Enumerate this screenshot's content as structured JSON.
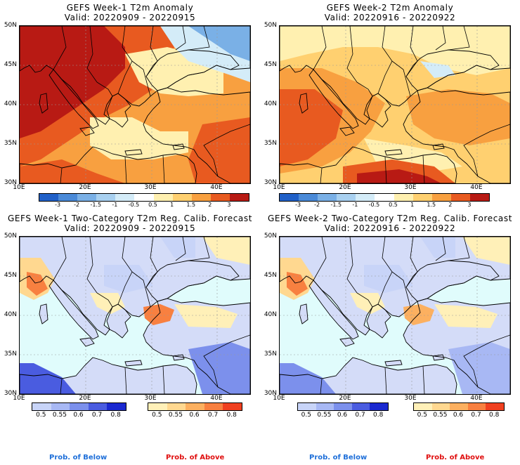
{
  "panels": [
    {
      "id": "p1",
      "title": "GEFS Week-1 T2m Anomaly",
      "valid": "Valid: 20220909 - 20220915",
      "kind": "anom"
    },
    {
      "id": "p2",
      "title": "GEFS Week-2 T2m Anomaly",
      "valid": "Valid: 20220916 - 20220922",
      "kind": "anom"
    },
    {
      "id": "p3",
      "title": "GEFS Week-1 Two-Category T2m Reg. Calib. Forecast",
      "valid": "Valid: 20220909 - 20220915",
      "kind": "prob"
    },
    {
      "id": "p4",
      "title": "GEFS Week-2 Two-Category T2m Reg. Calib. Forecast",
      "valid": "Valid: 20220916 - 20220922",
      "kind": "prob"
    }
  ],
  "lat_labels": [
    "50N",
    "45N",
    "40N",
    "35N",
    "30N"
  ],
  "lon_labels": [
    "10E",
    "20E",
    "30E",
    "40E"
  ],
  "anom_colorbar": {
    "labels": [
      "-3",
      "-2",
      "-1.5",
      "-1",
      "-0.5",
      "0.5",
      "1",
      "1.5",
      "2",
      "3"
    ],
    "colors": [
      "#2060c8",
      "#4a8ad8",
      "#7ab0e6",
      "#a8d0f0",
      "#d4ecf8",
      "#ffffff",
      "#fff0b0",
      "#ffd070",
      "#f8a040",
      "#e85a20",
      "#b81a14"
    ]
  },
  "prob_colorbar": {
    "below_labels": [
      "0.5",
      "0.55",
      "0.6",
      "0.7",
      "0.8"
    ],
    "below_colors": [
      "#c8d4f8",
      "#a8b8f4",
      "#7c90ec",
      "#4a5ce0",
      "#1a28d0"
    ],
    "above_labels": [
      "0.5",
      "0.55",
      "0.6",
      "0.7",
      "0.8"
    ],
    "above_colors": [
      "#fff0b8",
      "#ffd890",
      "#fcb060",
      "#f88040",
      "#f04020"
    ],
    "below_title": "Prob. of Below",
    "above_title": "Prob. of Above",
    "below_color": "#1e6fd9",
    "above_color": "#e01010"
  },
  "map_colors": {
    "sea_prob": "#e0fcfc",
    "land_prob": "#d4dcf8",
    "coast": "#000000"
  }
}
